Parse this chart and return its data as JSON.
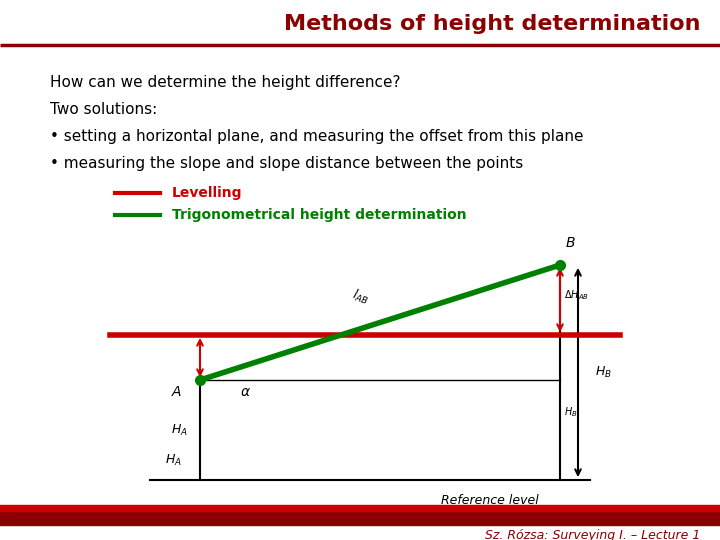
{
  "title": "Methods of height determination",
  "title_color": "#8B0000",
  "title_fontsize": 16,
  "bg_color": "#FFFFFF",
  "line1": "How can we determine the height difference?",
  "line2": "Two solutions:",
  "bullet1": "• setting a horizontal plane, and measuring the offset from this plane",
  "bullet2": "• measuring the slope and slope distance between the points",
  "legend_red": "Levelling",
  "legend_green": "Trigonometrical height determination",
  "footer": "Sz. Rózsa: Surveying I. – Lecture 1",
  "footer_color": "#8B0000",
  "dark_red": "#8B0000",
  "red_line_color": "#CC0000",
  "green_line_color": "#008000",
  "bottom_bar_color": "#8B0000",
  "ref_level_text": "Reference level"
}
